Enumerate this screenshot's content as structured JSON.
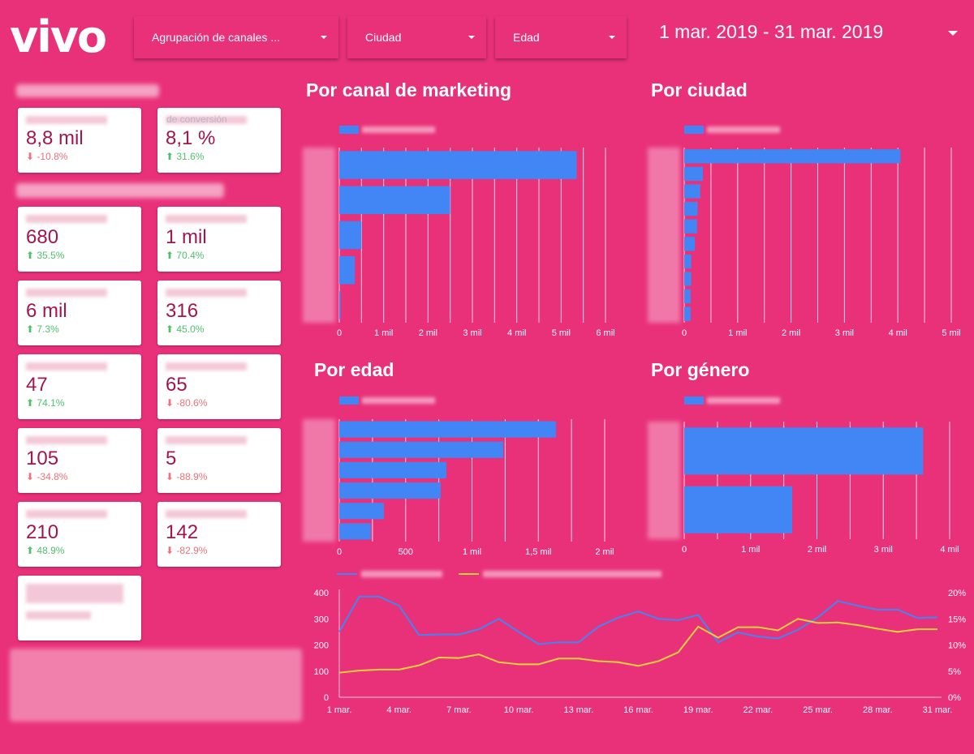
{
  "logo": "vivo",
  "filters": [
    {
      "label": "Agrupación de canales ..."
    },
    {
      "label": "Ciudad"
    },
    {
      "label": "Edad"
    }
  ],
  "date_range": "1 mar. 2019 - 31 mar. 2019",
  "colors": {
    "background": "#e9317a",
    "bar": "#4285f4",
    "line1": "#4285f4",
    "line2": "#f4d13a",
    "positive": "#4fc16d",
    "negative": "#f0707a",
    "value": "#a3154f"
  },
  "kpis": [
    {
      "value": "8,8 mil",
      "change": "-10.8%",
      "dir": "down"
    },
    {
      "value": "8,1 %",
      "change": "31.6%",
      "dir": "up",
      "label_fragment": "de conversión"
    },
    {
      "value": "680",
      "change": "35.5%",
      "dir": "up"
    },
    {
      "value": "1 mil",
      "change": "70.4%",
      "dir": "up"
    },
    {
      "value": "6 mil",
      "change": "7.3%",
      "dir": "up"
    },
    {
      "value": "316",
      "change": "45.0%",
      "dir": "up"
    },
    {
      "value": "47",
      "change": "74.1%",
      "dir": "up"
    },
    {
      "value": "65",
      "change": "-80.6%",
      "dir": "down"
    },
    {
      "value": "105",
      "change": "-34.8%",
      "dir": "down"
    },
    {
      "value": "5",
      "change": "-88.9%",
      "dir": "down"
    },
    {
      "value": "210",
      "change": "48.9%",
      "dir": "up"
    },
    {
      "value": "142",
      "change": "-82.9%",
      "dir": "down"
    }
  ],
  "chart_data": [
    {
      "type": "bar",
      "title": "Por canal de marketing",
      "orientation": "horizontal",
      "values": [
        5350,
        2500,
        500,
        350,
        30
      ],
      "xlim": [
        0,
        6000
      ],
      "ticks": [
        "0",
        "1 mil",
        "2 mil",
        "3 mil",
        "4 mil",
        "5 mil",
        "6 mil"
      ],
      "grid": true,
      "legend": "top-left"
    },
    {
      "type": "bar",
      "title": "Por ciudad",
      "orientation": "horizontal",
      "values": [
        4050,
        350,
        300,
        250,
        240,
        200,
        130,
        130,
        120,
        120
      ],
      "xlim": [
        0,
        5000
      ],
      "ticks": [
        "0",
        "1 mil",
        "2 mil",
        "3 mil",
        "4 mil",
        "5 mil"
      ],
      "grid": true,
      "legend": "top-left"
    },
    {
      "type": "bar",
      "title": "Por edad",
      "orientation": "horizontal",
      "values": [
        1633,
        1235,
        807,
        764,
        336,
        238
      ],
      "xlim": [
        0,
        2000
      ],
      "ticks": [
        "0",
        "500",
        "1 mil",
        "1,5 mil",
        "2 mil"
      ],
      "grid": true,
      "legend": "top-left"
    },
    {
      "type": "bar",
      "title": "Por género",
      "orientation": "horizontal",
      "values": [
        3600,
        1627
      ],
      "xlim": [
        0,
        4000
      ],
      "ticks": [
        "0",
        "1 mil",
        "2 mil",
        "3 mil",
        "4 mil"
      ],
      "grid": true,
      "legend": "top-left"
    },
    {
      "type": "line",
      "x": [
        "1 mar.",
        "2 mar.",
        "3 mar.",
        "4 mar.",
        "5 mar.",
        "6 mar.",
        "7 mar.",
        "8 mar.",
        "9 mar.",
        "10 mar.",
        "11 mar.",
        "12 mar.",
        "13 mar.",
        "14 mar.",
        "15 mar.",
        "16 mar.",
        "17 mar.",
        "18 mar.",
        "19 mar.",
        "20 mar.",
        "21 mar.",
        "22 mar.",
        "23 mar.",
        "24 mar.",
        "25 mar.",
        "26 mar.",
        "27 mar.",
        "28 mar.",
        "29 mar.",
        "30 mar.",
        "31 mar."
      ],
      "xticks": [
        "1 mar.",
        "4 mar.",
        "7 mar.",
        "10 mar.",
        "13 mar.",
        "16 mar.",
        "19 mar.",
        "22 mar.",
        "25 mar.",
        "28 mar.",
        "31 mar."
      ],
      "series": [
        {
          "axis": "left",
          "values": [
            250,
            385,
            385,
            350,
            238,
            240,
            240,
            260,
            300,
            250,
            203,
            210,
            210,
            270,
            305,
            328,
            300,
            295,
            315,
            210,
            248,
            232,
            225,
            258,
            305,
            368,
            350,
            335,
            335,
            303,
            306
          ]
        },
        {
          "axis": "right",
          "values": [
            4.7,
            5.1,
            5.3,
            5.3,
            6.1,
            7.6,
            7.5,
            8.2,
            6.7,
            6.3,
            6.3,
            7.4,
            7.4,
            6.9,
            6.7,
            6.0,
            6.9,
            8.6,
            13.5,
            11.4,
            13.4,
            13.4,
            12.8,
            15.0,
            14.2,
            14.3,
            13.8,
            13.1,
            12.5,
            13.0,
            13.0
          ]
        }
      ],
      "ylim": [
        0,
        400
      ],
      "yticks": [
        "0",
        "100",
        "200",
        "300",
        "400"
      ],
      "y2lim": [
        0,
        20
      ],
      "y2ticks": [
        "0%",
        "5%",
        "10%",
        "15%",
        "20%"
      ],
      "legend": "top-left"
    }
  ]
}
